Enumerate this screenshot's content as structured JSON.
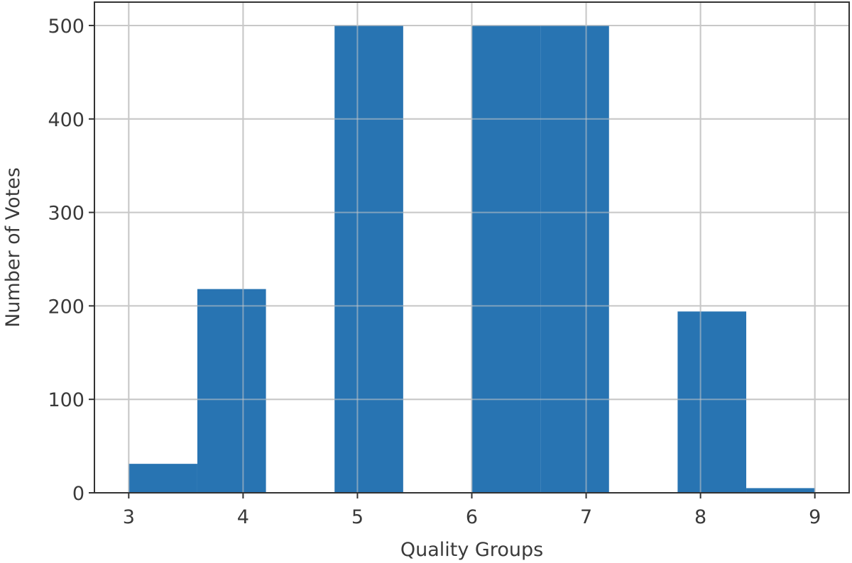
{
  "chart_data": {
    "type": "bar",
    "title": "",
    "xlabel": "Quality Groups",
    "ylabel": "Number of Votes",
    "xlim": [
      2.7,
      9.3
    ],
    "ylim": [
      0,
      525
    ],
    "xticks": [
      "3",
      "4",
      "5",
      "6",
      "7",
      "8",
      "9"
    ],
    "yticks": [
      "0",
      "100",
      "200",
      "300",
      "400",
      "500"
    ],
    "grid": true,
    "bar_color": "#2874b2",
    "bins": [
      {
        "x0": 3.0,
        "x1": 3.6,
        "value": 31
      },
      {
        "x0": 3.6,
        "x1": 4.2,
        "value": 218
      },
      {
        "x0": 4.2,
        "x1": 4.8,
        "value": 0
      },
      {
        "x0": 4.8,
        "x1": 5.4,
        "value": 500
      },
      {
        "x0": 5.4,
        "x1": 6.0,
        "value": 0
      },
      {
        "x0": 6.0,
        "x1": 6.6,
        "value": 500
      },
      {
        "x0": 6.6,
        "x1": 7.2,
        "value": 500
      },
      {
        "x0": 7.2,
        "x1": 7.8,
        "value": 0
      },
      {
        "x0": 7.8,
        "x1": 8.4,
        "value": 194
      },
      {
        "x0": 8.4,
        "x1": 9.0,
        "value": 5
      }
    ]
  }
}
